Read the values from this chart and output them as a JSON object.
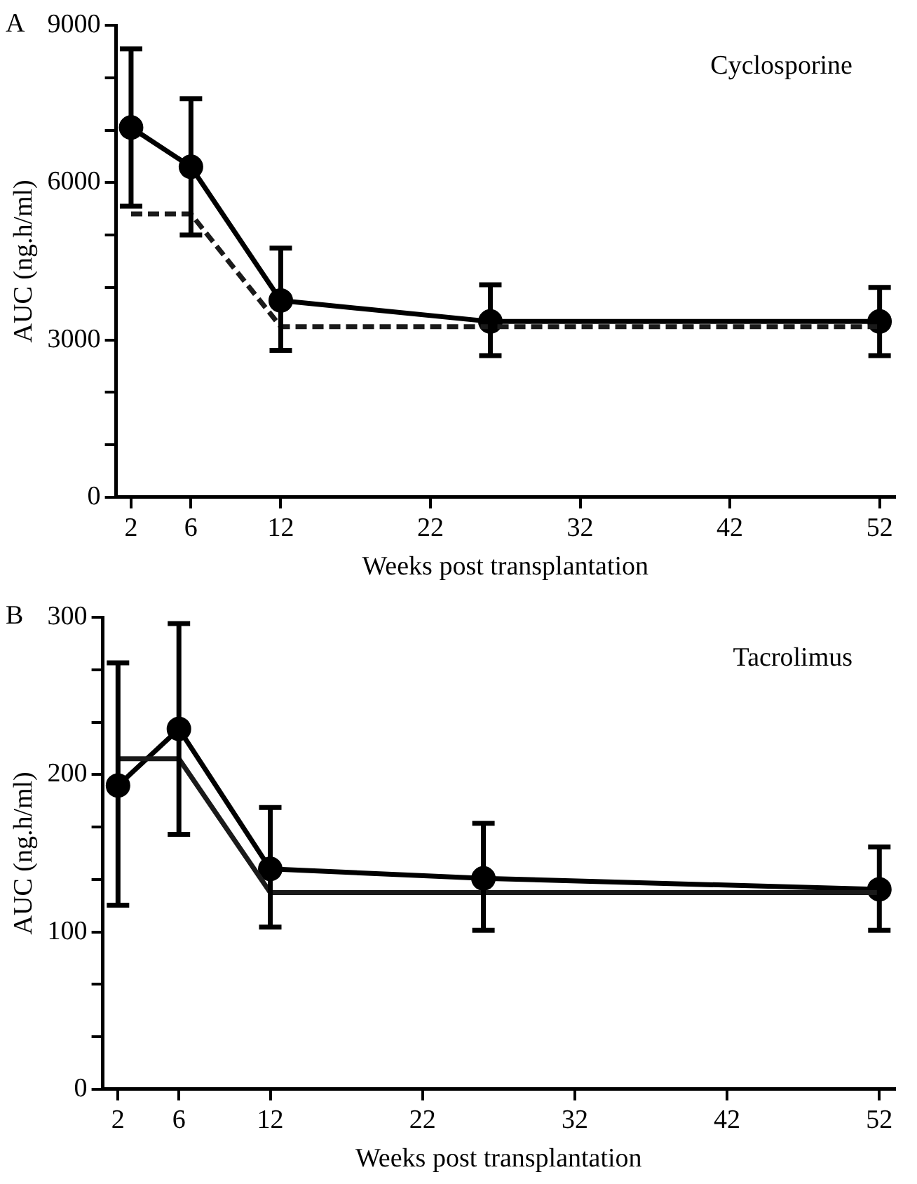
{
  "chart_data": [
    {
      "type": "line",
      "title": "Cyclosporine",
      "annotations": [
        "A"
      ],
      "xlabel": "Weeks post transplantation",
      "ylabel": "AUC (ng.h/ml)",
      "xlim": [
        1,
        53
      ],
      "xticks": [
        2,
        6,
        12,
        22,
        32,
        42,
        52
      ],
      "ylim": [
        0,
        9000
      ],
      "yticks": [
        0,
        {
          "value": 1000,
          "label": null
        },
        {
          "value": 2000,
          "label": null
        },
        3000,
        {
          "value": 4000,
          "label": null
        },
        {
          "value": 5000,
          "label": null
        },
        6000,
        {
          "value": 7000,
          "label": null
        },
        {
          "value": 8000,
          "label": null
        },
        9000
      ],
      "grid": false,
      "legend": false,
      "series": [
        {
          "type": "line",
          "color": "#000000",
          "marker": "circle",
          "line_style": "solid",
          "x": [
            2,
            6,
            12,
            26,
            52
          ],
          "values": [
            7050,
            6300,
            3750,
            3350,
            3350
          ],
          "errors": [
            [
              5550,
              8550
            ],
            [
              5000,
              7600
            ],
            [
              2800,
              4750
            ],
            [
              2700,
              4050
            ],
            [
              2700,
              4000
            ]
          ]
        },
        {
          "type": "line",
          "color": "#1a1a1a",
          "marker": "none",
          "line_style": "dashed",
          "x": [
            2,
            6,
            12,
            52
          ],
          "values": [
            5400,
            5400,
            3250,
            3250
          ]
        }
      ]
    },
    {
      "type": "line",
      "title": "Tacrolimus",
      "annotations": [
        "B"
      ],
      "xlabel": "Weeks post transplantation",
      "ylabel": "AUC (ng.h/ml)",
      "xlim": [
        1,
        53
      ],
      "xticks": [
        2,
        6,
        12,
        22,
        32,
        42,
        52
      ],
      "ylim": [
        0,
        300
      ],
      "yticks": [
        0,
        {
          "value": 33.3,
          "label": null
        },
        {
          "value": 66.7,
          "label": null
        },
        100,
        {
          "value": 133.3,
          "label": null
        },
        {
          "value": 166.7,
          "label": null
        },
        200,
        {
          "value": 233.3,
          "label": null
        },
        {
          "value": 266.7,
          "label": null
        },
        300
      ],
      "grid": false,
      "legend": false,
      "series": [
        {
          "type": "line",
          "color": "#000000",
          "marker": "circle",
          "line_style": "solid",
          "x": [
            2,
            6,
            12,
            26,
            52
          ],
          "values": [
            193,
            229,
            140,
            134,
            127
          ],
          "errors": [
            [
              117,
              271
            ],
            [
              162,
              296
            ],
            [
              103,
              179
            ],
            [
              101,
              169
            ],
            [
              101,
              154
            ]
          ]
        },
        {
          "type": "line",
          "color": "#1a1a1a",
          "marker": "none",
          "line_style": "solid",
          "x": [
            2,
            6,
            12,
            52
          ],
          "values": [
            210,
            210,
            125,
            125
          ]
        }
      ]
    }
  ]
}
